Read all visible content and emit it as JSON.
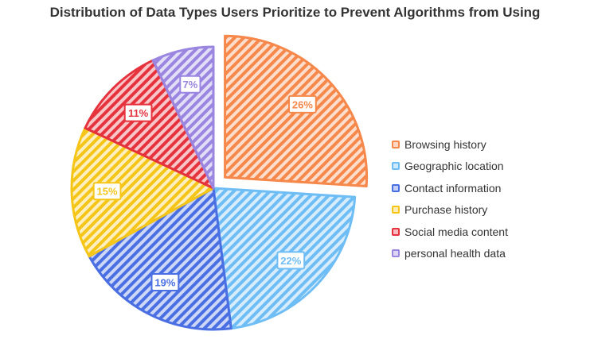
{
  "chart_data": {
    "type": "pie",
    "title": "Distribution of Data Types Users Prioritize to Prevent Algorithms from Using",
    "legend_position": "right",
    "slices": [
      {
        "label": "Browsing history",
        "value": 26,
        "display": "26%",
        "color": "#F5884A",
        "exploded": true
      },
      {
        "label": "Geographic location",
        "value": 22,
        "display": "22%",
        "color": "#6FBDF5",
        "exploded": false
      },
      {
        "label": "Contact information",
        "value": 19,
        "display": "19%",
        "color": "#4A6FE3",
        "exploded": false
      },
      {
        "label": "Purchase history",
        "value": 15,
        "display": "15%",
        "color": "#F5C518",
        "exploded": false
      },
      {
        "label": "Social media content",
        "value": 11,
        "display": "11%",
        "color": "#E5323C",
        "exploded": false
      },
      {
        "label": "personal health data",
        "value": 7,
        "display": "7%",
        "color": "#9A86E0",
        "exploded": false
      }
    ]
  }
}
